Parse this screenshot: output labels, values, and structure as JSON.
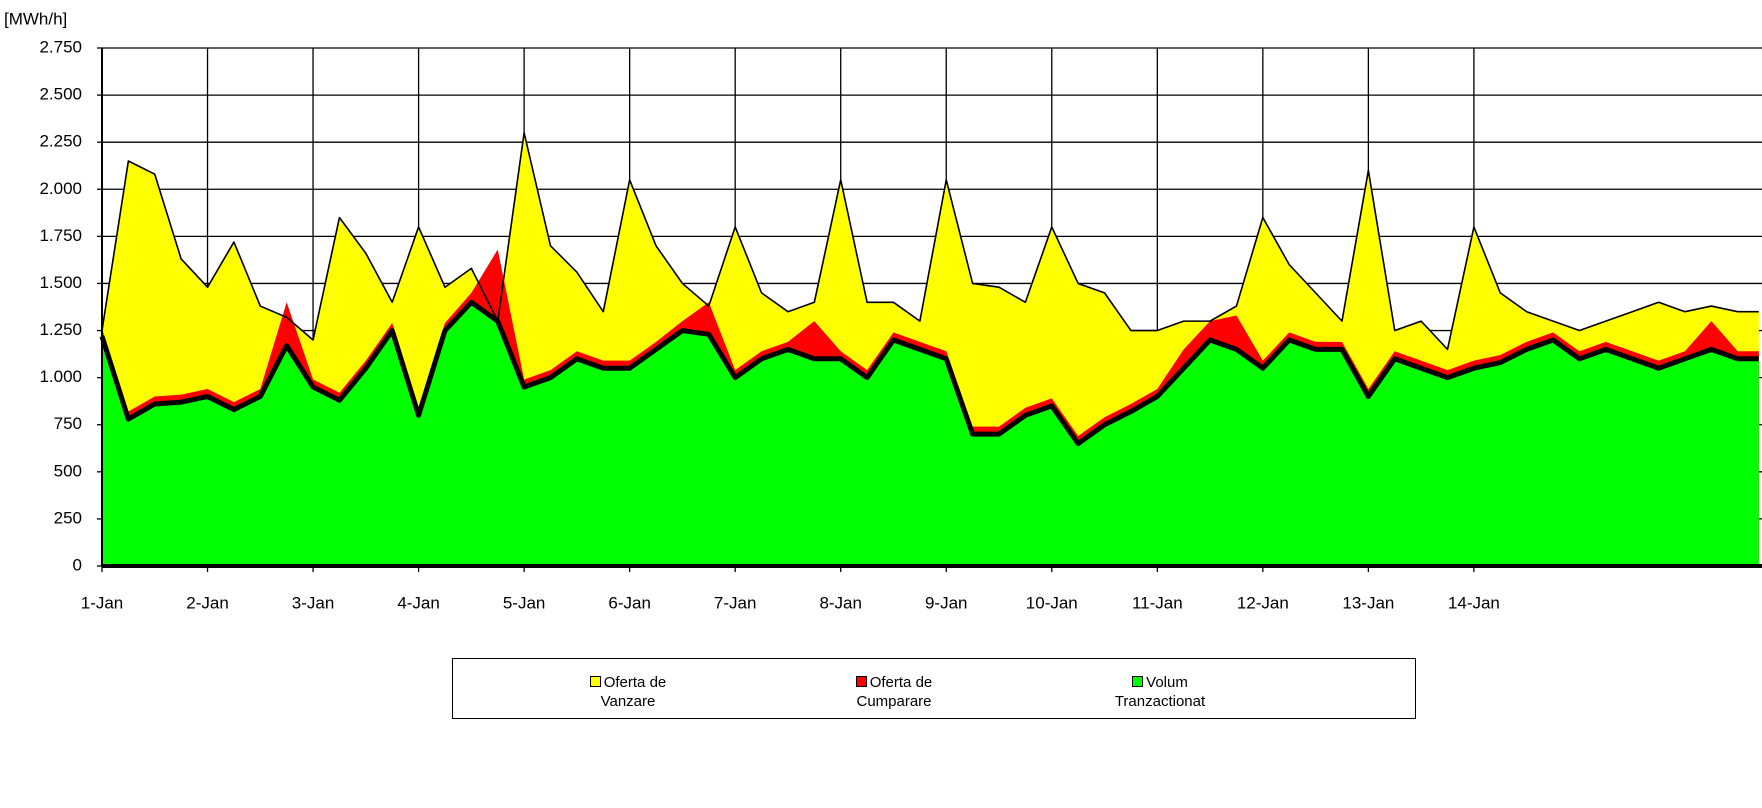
{
  "chart_data": {
    "type": "area",
    "ylabel": "[MWh/h]",
    "x": [
      0,
      0.25,
      0.5,
      0.75,
      1,
      1.25,
      1.5,
      1.75,
      2,
      2.25,
      2.5,
      2.75,
      3,
      3.25,
      3.5,
      3.75,
      4,
      4.25,
      4.5,
      4.75,
      5,
      5.25,
      5.5,
      5.75,
      6,
      6.25,
      6.5,
      6.75,
      7,
      7.25,
      7.5,
      7.75,
      8,
      8.25,
      8.5,
      8.75,
      9,
      9.25,
      9.5,
      9.75,
      10,
      10.25,
      10.5,
      10.75,
      11,
      11.25,
      11.5,
      11.75,
      12,
      12.25,
      12.5,
      12.75,
      13,
      13.25,
      13.5,
      13.75,
      14,
      14.25,
      14.5,
      14.75,
      15,
      15.25,
      15.5,
      15.7
    ],
    "xlim": [
      0,
      15.73
    ],
    "xticks": [
      {
        "value": 0,
        "label": "1-Jan"
      },
      {
        "value": 1,
        "label": "2-Jan"
      },
      {
        "value": 2,
        "label": "3-Jan"
      },
      {
        "value": 3,
        "label": "4-Jan"
      },
      {
        "value": 4,
        "label": "5-Jan"
      },
      {
        "value": 5,
        "label": "6-Jan"
      },
      {
        "value": 6,
        "label": "7-Jan"
      },
      {
        "value": 7,
        "label": "8-Jan"
      },
      {
        "value": 8,
        "label": "9-Jan"
      },
      {
        "value": 9,
        "label": "10-Jan"
      },
      {
        "value": 10,
        "label": "11-Jan"
      },
      {
        "value": 11,
        "label": "12-Jan"
      },
      {
        "value": 12,
        "label": "13-Jan"
      },
      {
        "value": 13,
        "label": "14-Jan"
      }
    ],
    "ylim": [
      0,
      2750
    ],
    "yticks": [
      0,
      250,
      500,
      750,
      {
        "value": 1000,
        "label": "1.000"
      },
      {
        "value": 1250,
        "label": "1.250"
      },
      {
        "value": 1500,
        "label": "1.500"
      },
      {
        "value": 1750,
        "label": "1.750"
      },
      {
        "value": 2000,
        "label": "2.000"
      },
      {
        "value": 2250,
        "label": "2.250"
      },
      {
        "value": 2500,
        "label": "2.500"
      },
      {
        "value": 2750,
        "label": "2.750"
      }
    ],
    "grid": true,
    "series": [
      {
        "name": "Oferta de Vanzare",
        "color": "#ffff00",
        "values": [
          1250,
          2150,
          2080,
          1630,
          1480,
          1720,
          1380,
          1320,
          1200,
          1850,
          1660,
          1400,
          1800,
          1480,
          1580,
          1300,
          2300,
          1700,
          1560,
          1350,
          2050,
          1700,
          1500,
          1380,
          1800,
          1450,
          1350,
          1400,
          2050,
          1400,
          1400,
          1300,
          2050,
          1500,
          1480,
          1400,
          1800,
          1500,
          1450,
          1250,
          1250,
          1300,
          1300,
          1380,
          1850,
          1600,
          1450,
          1300,
          2100,
          1250,
          1300,
          1150,
          1800,
          1450,
          1350,
          1300,
          1250,
          1300,
          1350,
          1400,
          1350,
          1380,
          1350,
          1350
        ]
      },
      {
        "name": "Oferta de Cumparare",
        "color": "#ff0000",
        "values": [
          1260,
          820,
          900,
          910,
          940,
          870,
          940,
          1400,
          990,
          920,
          1090,
          1290,
          840,
          1290,
          1450,
          1680,
          990,
          1040,
          1140,
          1090,
          1090,
          1190,
          1300,
          1400,
          1040,
          1140,
          1190,
          1300,
          1140,
          1040,
          1240,
          1190,
          1140,
          740,
          740,
          840,
          890,
          690,
          790,
          860,
          940,
          1150,
          1300,
          1330,
          1090,
          1240,
          1190,
          1190,
          940,
          1140,
          1090,
          1040,
          1090,
          1120,
          1190,
          1240,
          1140,
          1190,
          1140,
          1090,
          1140,
          1300,
          1140,
          1140
        ]
      },
      {
        "name": "Volum Tranzactionat",
        "color": "#00ff00",
        "values": [
          1220,
          780,
          860,
          870,
          900,
          830,
          900,
          1170,
          950,
          880,
          1050,
          1250,
          800,
          1250,
          1400,
          1300,
          950,
          1000,
          1100,
          1050,
          1050,
          1150,
          1250,
          1230,
          1000,
          1100,
          1150,
          1100,
          1100,
          1000,
          1200,
          1150,
          1100,
          700,
          700,
          800,
          850,
          650,
          750,
          820,
          900,
          1050,
          1200,
          1150,
          1050,
          1200,
          1150,
          1150,
          900,
          1100,
          1050,
          1000,
          1050,
          1080,
          1150,
          1200,
          1100,
          1150,
          1100,
          1050,
          1100,
          1150,
          1100,
          1100
        ]
      }
    ]
  }
}
